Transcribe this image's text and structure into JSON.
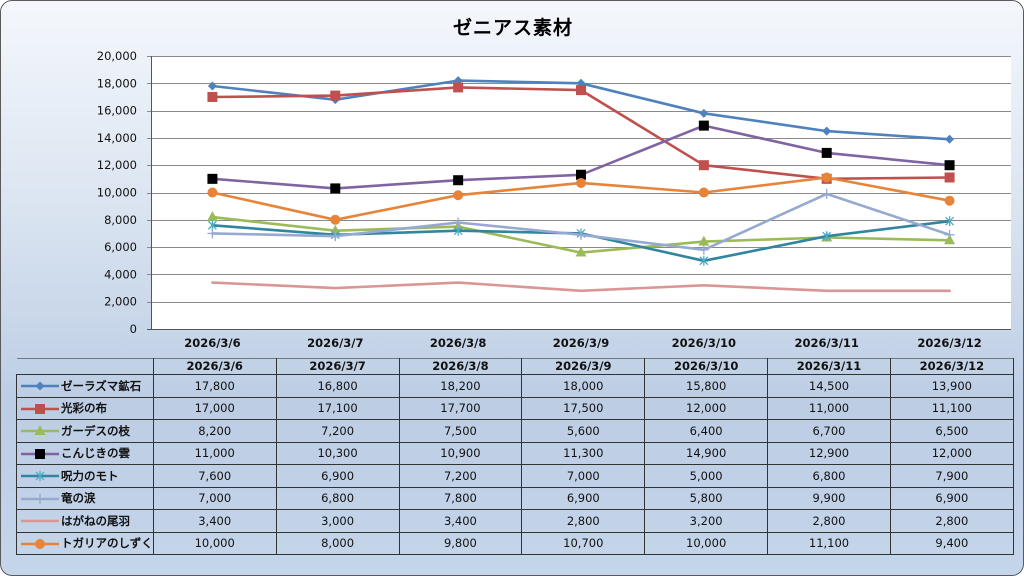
{
  "chart_data": {
    "type": "line",
    "title": "ゼニアス素材",
    "xlabel": "",
    "ylabel": "",
    "ylim": [
      0,
      20000
    ],
    "y_ticks": [
      "0",
      "2,000",
      "4,000",
      "6,000",
      "8,000",
      "10,000",
      "12,000",
      "14,000",
      "16,000",
      "18,000",
      "20,000"
    ],
    "y_tick_values": [
      0,
      2000,
      4000,
      6000,
      8000,
      10000,
      12000,
      14000,
      16000,
      18000,
      20000
    ],
    "grid": true,
    "legend": "data-table",
    "categories": [
      "2026/3/6",
      "2026/3/7",
      "2026/3/8",
      "2026/3/9",
      "2026/3/10",
      "2026/3/11",
      "2026/3/12"
    ],
    "series": [
      {
        "name": "ゼーラズマ鉱石",
        "color": "#4f81bd",
        "marker": "diamond",
        "values": [
          17800,
          16800,
          18200,
          18000,
          15800,
          14500,
          13900
        ],
        "labels": [
          "17,800",
          "16,800",
          "18,200",
          "18,000",
          "15,800",
          "14,500",
          "13,900"
        ]
      },
      {
        "name": "光彩の布",
        "color": "#c0504d",
        "marker": "square",
        "values": [
          17000,
          17100,
          17700,
          17500,
          12000,
          11000,
          11100
        ],
        "labels": [
          "17,000",
          "17,100",
          "17,700",
          "17,500",
          "12,000",
          "11,000",
          "11,100"
        ]
      },
      {
        "name": "ガーデスの枝",
        "color": "#9bbb59",
        "marker": "triangle",
        "values": [
          8200,
          7200,
          7500,
          5600,
          6400,
          6700,
          6500
        ],
        "labels": [
          "8,200",
          "7,200",
          "7,500",
          "5,600",
          "6,400",
          "6,700",
          "6,500"
        ]
      },
      {
        "name": "こんじきの雲",
        "color": "#8064a2",
        "marker_color": "#000000",
        "marker": "square",
        "values": [
          11000,
          10300,
          10900,
          11300,
          14900,
          12900,
          12000
        ],
        "labels": [
          "11,000",
          "10,300",
          "10,900",
          "11,300",
          "14,900",
          "12,900",
          "12,000"
        ]
      },
      {
        "name": "呪力のモト",
        "color": "#4bacc6",
        "line_color": "#31859c",
        "marker": "asterisk",
        "values": [
          7600,
          6900,
          7200,
          7000,
          5000,
          6800,
          7900
        ],
        "labels": [
          "7,600",
          "6,900",
          "7,200",
          "7,000",
          "5,000",
          "6,800",
          "7,900"
        ]
      },
      {
        "name": "竜の涙",
        "color": "#95a9d1",
        "marker": "plus",
        "values": [
          7000,
          6800,
          7800,
          6900,
          5800,
          9900,
          6900
        ],
        "labels": [
          "7,000",
          "6,800",
          "7,800",
          "6,900",
          "5,800",
          "9,900",
          "6,900"
        ]
      },
      {
        "name": "はがねの尾羽",
        "color": "#d99694",
        "marker": "none",
        "values": [
          3400,
          3000,
          3400,
          2800,
          3200,
          2800,
          2800
        ],
        "labels": [
          "3,400",
          "3,000",
          "3,400",
          "2,800",
          "3,200",
          "2,800",
          "2,800"
        ]
      },
      {
        "name": "トガリアのしずく",
        "color": "#e8843a",
        "marker": "circle",
        "values": [
          10000,
          8000,
          9800,
          10700,
          10000,
          11100,
          9400
        ],
        "labels": [
          "10,000",
          "8,000",
          "9,800",
          "10,700",
          "10,000",
          "11,100",
          "9,400"
        ]
      }
    ]
  }
}
